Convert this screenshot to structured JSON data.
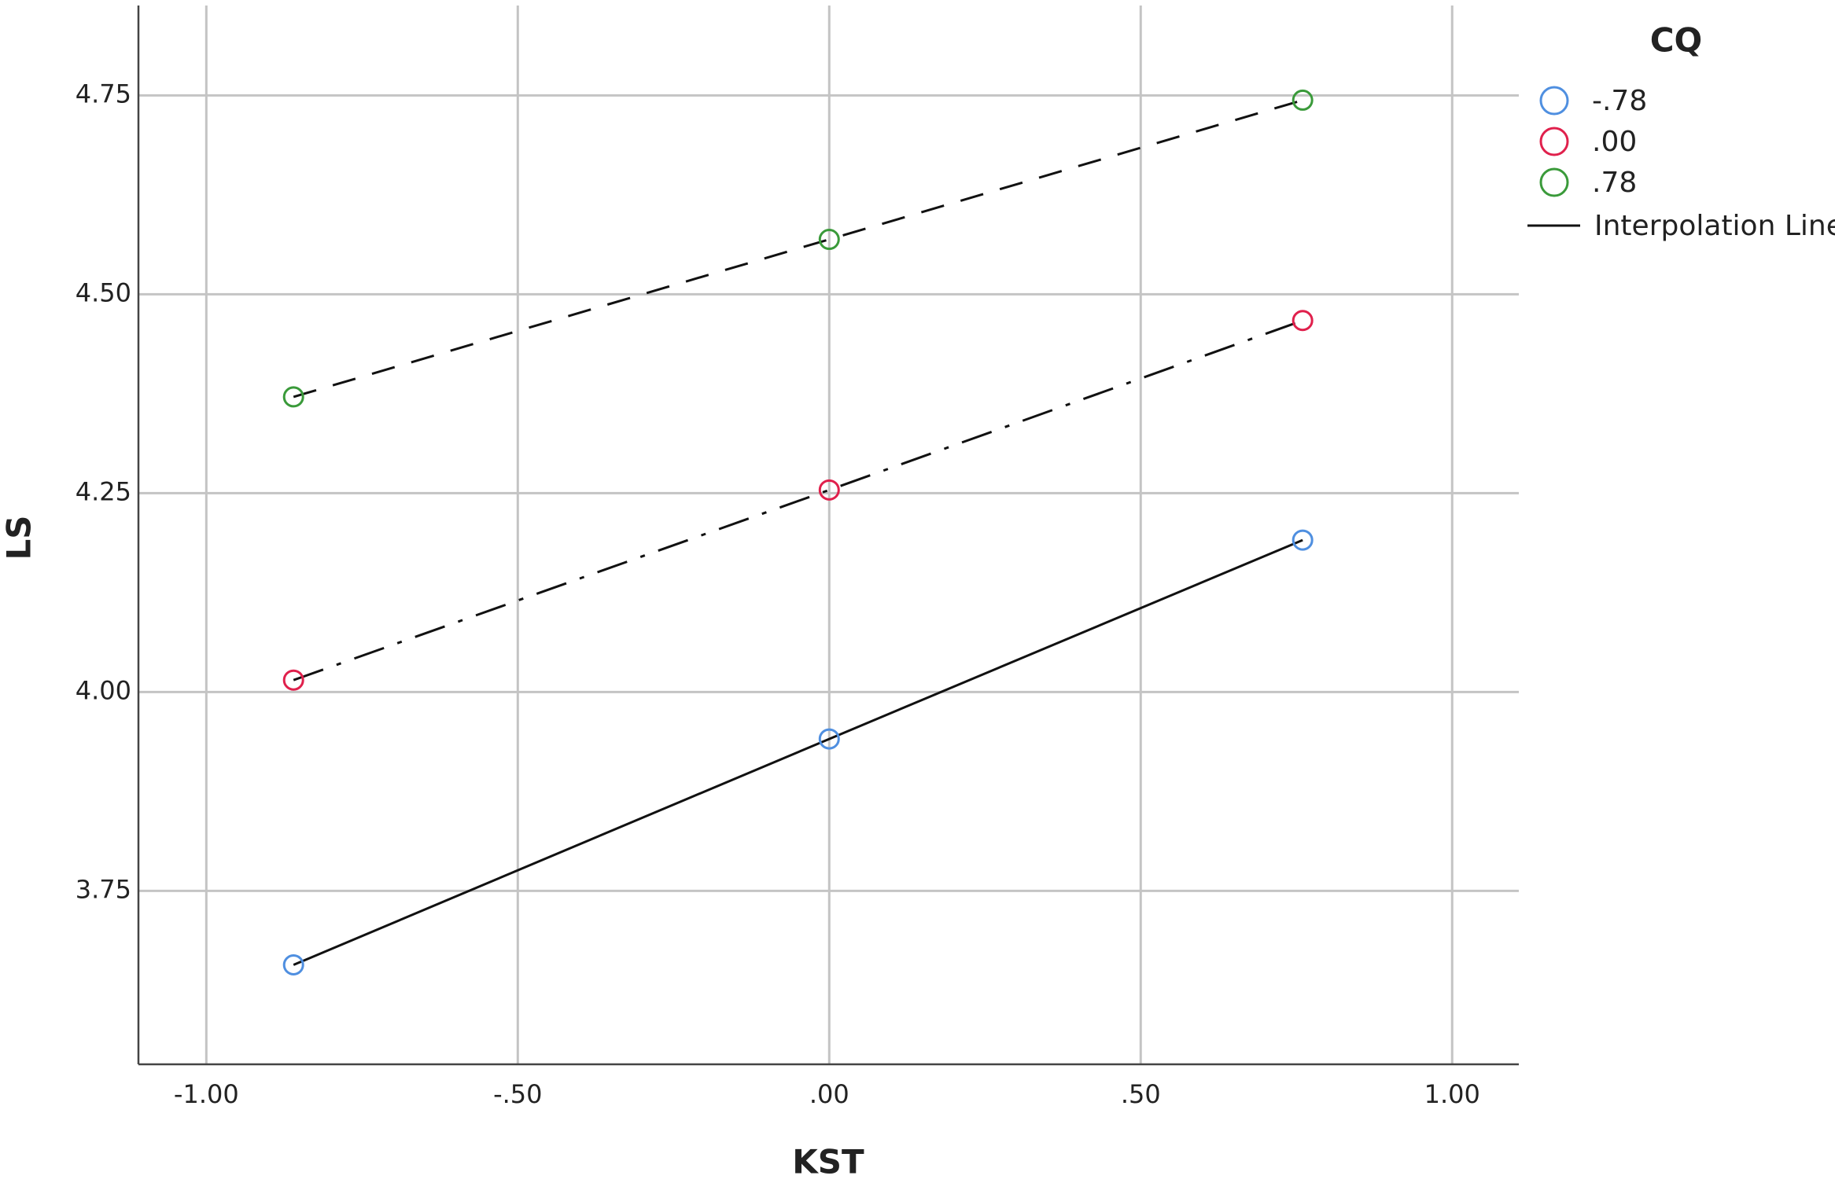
{
  "chart_data": {
    "type": "line",
    "x_label": "KST",
    "y_label": "LS",
    "legend_title": "CQ",
    "interpolation_label": "Interpolation Line",
    "x": [
      -0.86,
      0,
      0.76
    ],
    "series": [
      {
        "name": "-.78",
        "color": "#4f8fe0",
        "line_style": "solid",
        "values": [
          3.657,
          3.941,
          4.191
        ]
      },
      {
        "name": ".00",
        "color": "#e0204c",
        "line_style": "dashdot",
        "values": [
          4.015,
          4.254,
          4.467
        ]
      },
      {
        "name": ".78",
        "color": "#3a9a3a",
        "line_style": "dash",
        "values": [
          4.371,
          4.569,
          4.744
        ]
      }
    ],
    "xlim": [
      -1.109,
      1.107
    ],
    "ylim": [
      3.532,
      4.863
    ],
    "xticks": [
      {
        "value": -1,
        "label": "-1.00"
      },
      {
        "value": -0.5,
        "label": "-.50"
      },
      {
        "value": 0,
        "label": ".00"
      },
      {
        "value": 0.5,
        "label": ".50"
      },
      {
        "value": 1,
        "label": "1.00"
      }
    ],
    "yticks": [
      3.75,
      {
        "value": 4,
        "label": "4.00"
      },
      4.25,
      {
        "value": 4.5,
        "label": "4.50"
      },
      4.75
    ],
    "grid": true,
    "legend": "right"
  }
}
